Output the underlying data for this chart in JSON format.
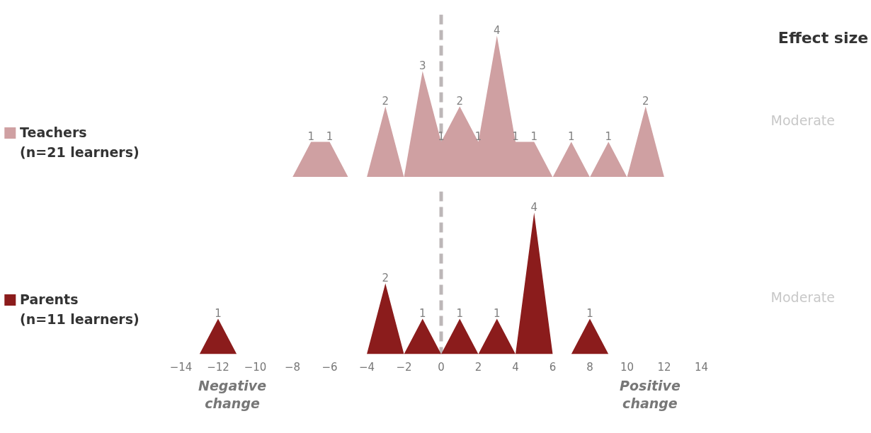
{
  "chart_data": [
    {
      "type": "area",
      "x": [
        -8,
        -7,
        -6,
        -5,
        -4,
        -3,
        -2,
        -1,
        0,
        1,
        2,
        3,
        4,
        5,
        6,
        7,
        8,
        9,
        10,
        11,
        12
      ],
      "series": [
        {
          "name": "Teachers\n(n=21 learners)",
          "color": "#cfa0a2",
          "values": [
            0,
            1,
            1,
            0,
            0,
            2,
            0,
            3,
            1,
            2,
            1,
            4,
            1,
            1,
            0,
            1,
            0,
            1,
            0,
            2,
            0
          ],
          "value_labels": [
            null,
            "1",
            "1",
            null,
            null,
            "2",
            null,
            "3",
            "1",
            "2",
            "1",
            "4",
            "1",
            "1",
            null,
            "1",
            null,
            "1",
            null,
            "2",
            null
          ]
        }
      ],
      "xlim": [
        -14,
        14
      ],
      "ylim": [
        0,
        4.6
      ],
      "tick_labels": false,
      "legend": "left",
      "grid": false,
      "ref_lines": [
        {
          "axis": "x",
          "value": 0,
          "color": "#bdb7b8",
          "line_style": "dashed"
        }
      ]
    },
    {
      "type": "area",
      "x": [
        -13,
        -12,
        -11,
        -4,
        -3,
        -2,
        -1,
        0,
        1,
        2,
        3,
        4,
        5,
        6,
        7,
        8,
        9
      ],
      "series": [
        {
          "name": "Parents\n(n=11 learners)",
          "color": "#8b1c1c",
          "values": [
            0,
            1,
            0,
            0,
            2,
            0,
            1,
            0,
            1,
            0,
            1,
            0,
            4,
            0,
            0,
            1,
            0
          ],
          "value_labels": [
            null,
            "1",
            null,
            null,
            "2",
            null,
            "1",
            null,
            "1",
            null,
            "1",
            null,
            "4",
            null,
            null,
            "1",
            null
          ]
        }
      ],
      "xlim": [
        -14,
        14
      ],
      "ylim": [
        0,
        4.6
      ],
      "xticks": [
        -14,
        -12,
        -10,
        -8,
        -6,
        -4,
        -2,
        0,
        2,
        4,
        6,
        8,
        10,
        12,
        14
      ],
      "tick_labels": "x",
      "legend": "left",
      "grid": false,
      "ref_lines": [
        {
          "axis": "x",
          "value": 0,
          "color": "#bdb7b8",
          "line_style": "dashed"
        }
      ],
      "annotations": [
        "Negative change",
        "Positive change"
      ]
    },
    {
      "type": "other",
      "title": "Effect size",
      "annotations": [
        "Moderate",
        "Moderate"
      ]
    }
  ]
}
